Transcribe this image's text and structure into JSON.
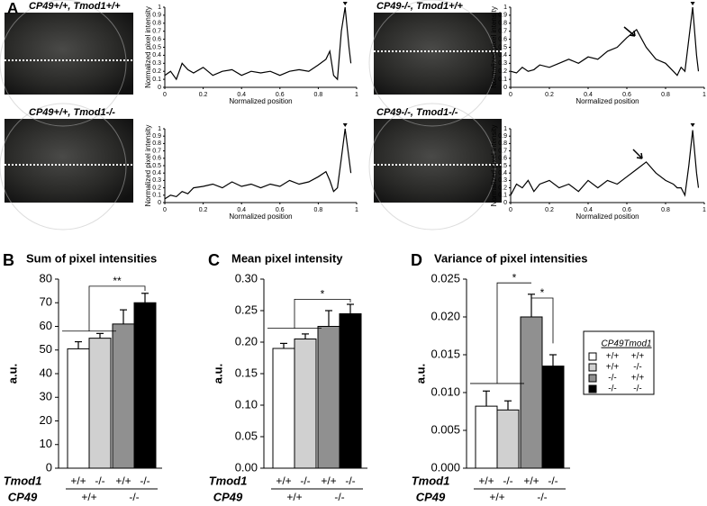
{
  "chart_data": [
    {
      "type": "line",
      "panel": "A",
      "title": "CP49+/+, Tmod1+/+",
      "xlabel": "Normalized position",
      "ylabel": "Normalized pixel intensity",
      "x": [
        0,
        0.03,
        0.06,
        0.09,
        0.12,
        0.15,
        0.2,
        0.25,
        0.3,
        0.35,
        0.4,
        0.45,
        0.5,
        0.55,
        0.6,
        0.65,
        0.7,
        0.75,
        0.8,
        0.84,
        0.86,
        0.88,
        0.9,
        0.92,
        0.94,
        0.96,
        0.97
      ],
      "values": [
        0.15,
        0.2,
        0.1,
        0.3,
        0.22,
        0.18,
        0.25,
        0.15,
        0.2,
        0.22,
        0.15,
        0.2,
        0.18,
        0.2,
        0.15,
        0.2,
        0.22,
        0.2,
        0.28,
        0.35,
        0.45,
        0.15,
        0.1,
        0.7,
        1.0,
        0.5,
        0.3
      ],
      "xlim": [
        0,
        1
      ],
      "ylim": [
        0,
        1
      ],
      "xticks": [
        0,
        0.2,
        0.4,
        0.6,
        0.8,
        1
      ],
      "yticks": [
        0,
        0.1,
        0.2,
        0.3,
        0.4,
        0.5,
        0.6,
        0.7,
        0.8,
        0.9,
        1
      ]
    },
    {
      "type": "line",
      "title": "CP49+/+, Tmod1-/-",
      "xlabel": "Normalized position",
      "ylabel": "Normalized pixel intensity",
      "x": [
        0,
        0.03,
        0.06,
        0.09,
        0.12,
        0.15,
        0.2,
        0.25,
        0.3,
        0.35,
        0.4,
        0.45,
        0.5,
        0.55,
        0.6,
        0.65,
        0.7,
        0.75,
        0.8,
        0.84,
        0.86,
        0.88,
        0.9,
        0.92,
        0.94,
        0.96,
        0.97
      ],
      "values": [
        0.05,
        0.1,
        0.08,
        0.15,
        0.12,
        0.2,
        0.22,
        0.25,
        0.2,
        0.28,
        0.22,
        0.25,
        0.2,
        0.25,
        0.22,
        0.3,
        0.25,
        0.28,
        0.35,
        0.42,
        0.3,
        0.15,
        0.2,
        0.6,
        1.0,
        0.6,
        0.4
      ],
      "xlim": [
        0,
        1
      ],
      "ylim": [
        0,
        1
      ],
      "xticks": [
        0,
        0.2,
        0.4,
        0.6,
        0.8,
        1
      ],
      "yticks": [
        0,
        0.1,
        0.2,
        0.3,
        0.4,
        0.5,
        0.6,
        0.7,
        0.8,
        0.9,
        1
      ]
    },
    {
      "type": "line",
      "title": "CP49-/-, Tmod1+/+",
      "xlabel": "Normalized position",
      "ylabel": "Normalized pixel intensity",
      "x": [
        0,
        0.03,
        0.06,
        0.09,
        0.12,
        0.15,
        0.2,
        0.25,
        0.3,
        0.35,
        0.4,
        0.45,
        0.5,
        0.55,
        0.6,
        0.65,
        0.7,
        0.75,
        0.8,
        0.84,
        0.86,
        0.88,
        0.9,
        0.92,
        0.94,
        0.96,
        0.97
      ],
      "values": [
        0.2,
        0.18,
        0.25,
        0.2,
        0.22,
        0.28,
        0.25,
        0.3,
        0.35,
        0.3,
        0.38,
        0.35,
        0.45,
        0.5,
        0.62,
        0.72,
        0.5,
        0.35,
        0.3,
        0.2,
        0.15,
        0.25,
        0.2,
        0.6,
        1.0,
        0.4,
        0.2
      ],
      "xlim": [
        0,
        1
      ],
      "ylim": [
        0,
        1
      ],
      "xticks": [
        0,
        0.2,
        0.4,
        0.6,
        0.8,
        1
      ],
      "yticks": [
        0,
        0.1,
        0.2,
        0.3,
        0.4,
        0.5,
        0.6,
        0.7,
        0.8,
        0.9,
        1
      ]
    },
    {
      "type": "line",
      "title": "CP49-/-, Tmod1-/-",
      "xlabel": "Normalized position",
      "ylabel": "Normalized pixel intensity",
      "x": [
        0,
        0.03,
        0.06,
        0.09,
        0.12,
        0.15,
        0.2,
        0.25,
        0.3,
        0.35,
        0.4,
        0.45,
        0.5,
        0.55,
        0.6,
        0.65,
        0.7,
        0.75,
        0.8,
        0.84,
        0.86,
        0.88,
        0.9,
        0.92,
        0.94,
        0.96,
        0.97
      ],
      "values": [
        0.1,
        0.25,
        0.2,
        0.3,
        0.15,
        0.25,
        0.3,
        0.2,
        0.25,
        0.15,
        0.3,
        0.2,
        0.3,
        0.25,
        0.35,
        0.45,
        0.55,
        0.4,
        0.3,
        0.25,
        0.2,
        0.2,
        0.1,
        0.5,
        0.98,
        0.4,
        0.2
      ],
      "xlim": [
        0,
        1
      ],
      "ylim": [
        0,
        1
      ],
      "xticks": [
        0,
        0.2,
        0.4,
        0.6,
        0.8,
        1
      ],
      "yticks": [
        0,
        0.1,
        0.2,
        0.3,
        0.4,
        0.5,
        0.6,
        0.7,
        0.8,
        0.9,
        1
      ]
    },
    {
      "type": "bar",
      "panel": "B",
      "title": "Sum of pixel intensities",
      "ylabel": "a.u.",
      "row_labels": [
        "Tmod1",
        "CP49"
      ],
      "categories": [
        "+/+",
        "-/-",
        "+/+",
        "-/-"
      ],
      "groups": [
        "+/+",
        "-/-"
      ],
      "values": [
        50.5,
        55,
        61,
        70
      ],
      "errors": [
        3,
        2,
        6,
        4
      ],
      "colors": [
        "#ffffff",
        "#d0d0d0",
        "#909090",
        "#000000"
      ],
      "ylim": [
        0,
        80
      ],
      "yticks": [
        0,
        10,
        20,
        30,
        40,
        50,
        60,
        70,
        80
      ],
      "significance": [
        "**"
      ]
    },
    {
      "type": "bar",
      "panel": "C",
      "title": "Mean pixel intensity",
      "ylabel": "a.u.",
      "row_labels": [
        "Tmod1",
        "CP49"
      ],
      "categories": [
        "+/+",
        "-/-",
        "+/+",
        "-/-"
      ],
      "groups": [
        "+/+",
        "-/-"
      ],
      "values": [
        0.19,
        0.205,
        0.225,
        0.245
      ],
      "errors": [
        0.008,
        0.008,
        0.025,
        0.015
      ],
      "colors": [
        "#ffffff",
        "#d0d0d0",
        "#909090",
        "#000000"
      ],
      "ylim": [
        0,
        0.3
      ],
      "yticks": [
        {
          "value": 0,
          "label": "0.00"
        },
        {
          "value": 0.05,
          "label": "0.05"
        },
        {
          "value": 0.1,
          "label": "0.10"
        },
        {
          "value": 0.15,
          "label": "0.15"
        },
        {
          "value": 0.2,
          "label": "0.20"
        },
        {
          "value": 0.25,
          "label": "0.25"
        },
        {
          "value": 0.3,
          "label": "0.30"
        }
      ],
      "significance": [
        "*"
      ]
    },
    {
      "type": "bar",
      "panel": "D",
      "title": "Variance of pixel intensities",
      "ylabel": "a.u.",
      "row_labels": [
        "Tmod1",
        "CP49"
      ],
      "categories": [
        "+/+",
        "-/-",
        "+/+",
        "-/-"
      ],
      "groups": [
        "+/+",
        "-/-"
      ],
      "values": [
        0.0082,
        0.0077,
        0.02,
        0.0135
      ],
      "errors": [
        0.002,
        0.0012,
        0.003,
        0.0015
      ],
      "colors": [
        "#ffffff",
        "#d0d0d0",
        "#909090",
        "#000000"
      ],
      "ylim": [
        0,
        0.025
      ],
      "yticks": [
        {
          "value": 0,
          "label": "0.000"
        },
        {
          "value": 0.005,
          "label": "0.005"
        },
        {
          "value": 0.01,
          "label": "0.010"
        },
        {
          "value": 0.015,
          "label": "0.015"
        },
        {
          "value": 0.02,
          "label": "0.020"
        },
        {
          "value": 0.025,
          "label": "0.025"
        }
      ],
      "significance": [
        "*",
        "*"
      ],
      "legend": {
        "headers": [
          "CP49",
          "Tmod1"
        ],
        "rows": [
          [
            "+/+",
            "+/+"
          ],
          [
            "+/+",
            "-/-"
          ],
          [
            "-/-",
            "+/+"
          ],
          [
            "-/-",
            "-/-"
          ]
        ]
      }
    }
  ]
}
